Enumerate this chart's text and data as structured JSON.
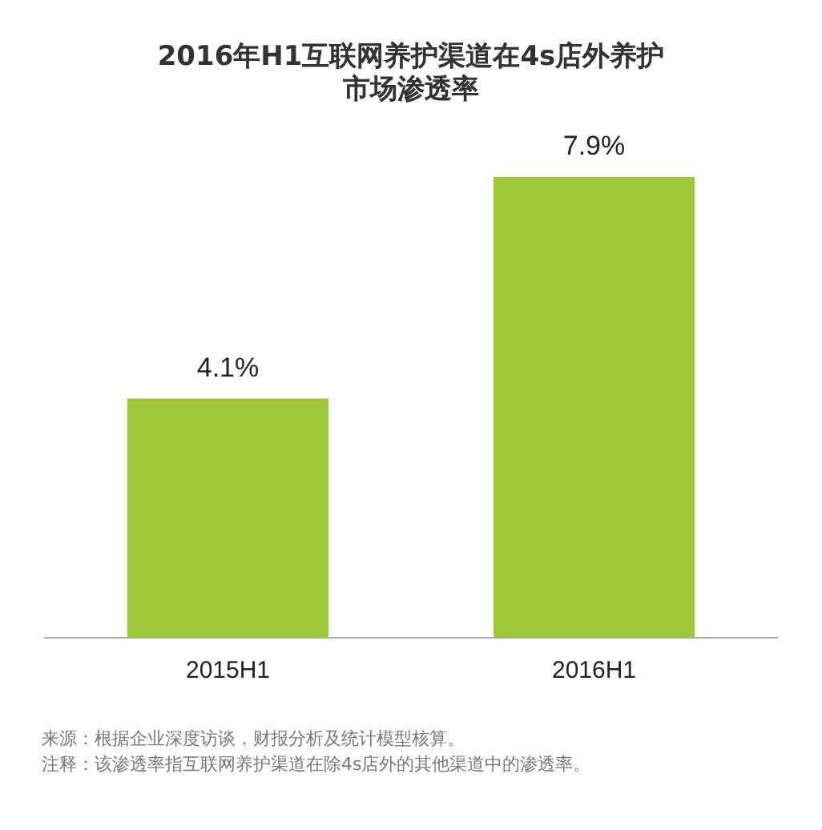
{
  "chart_data": {
    "type": "bar",
    "title": [
      "2016年H1互联网养护渠道在4s店外养护",
      "市场渗透率"
    ],
    "categories": [
      "2015H1",
      "2016H1"
    ],
    "values": [
      4.1,
      7.9
    ],
    "value_labels": [
      "4.1%",
      "7.9%"
    ],
    "color": "#9cc83a",
    "data_labels": true,
    "grid": false,
    "legend": false,
    "annotations": [
      "来源：根据企业深度访谈，财报分析及统计模型核算。",
      "注释：该渗透率指互联网养护渠道在除4s店外的其他渠道中的渗透率。"
    ]
  }
}
